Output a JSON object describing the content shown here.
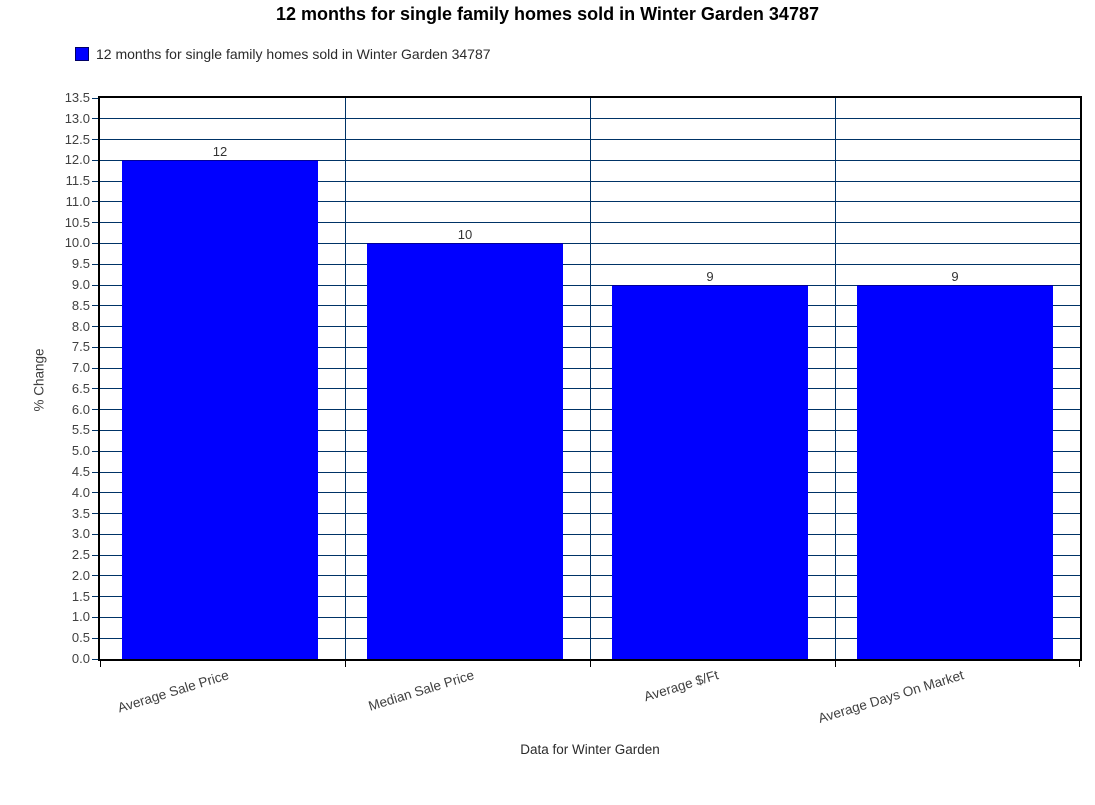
{
  "title": "12 months for single family homes sold in Winter Garden 34787",
  "legend": {
    "label": "12 months for single family homes sold in Winter Garden 34787",
    "swatch_color": "#0000ff"
  },
  "chart_data": {
    "type": "bar",
    "title": "12 months for single family homes sold in Winter Garden 34787",
    "categories": [
      "Average Sale Price",
      "Median Sale Price",
      "Average $/Ft",
      "Average Days On Market"
    ],
    "values": [
      12,
      10,
      9,
      9
    ],
    "data_labels": [
      "12",
      "10",
      "9",
      "9"
    ],
    "xlabel": "Data for Winter Garden",
    "ylabel": "% Change",
    "ylim": [
      0,
      13.5
    ],
    "ytick_step": 0.5,
    "grid": true,
    "legend_position": "top-left",
    "bar_color": "#0000ff",
    "bar_border_color": "#000099",
    "grid_color": "#003366",
    "axis_color": "#000000",
    "text_color": "#404040"
  }
}
